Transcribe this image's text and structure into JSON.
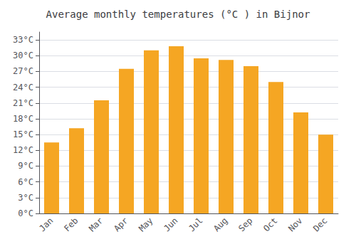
{
  "chart_data": {
    "type": "bar",
    "title": "Average monthly temperatures (°C ) in Bijnor",
    "categories": [
      "Jan",
      "Feb",
      "Mar",
      "Apr",
      "May",
      "Jun",
      "Jul",
      "Aug",
      "Sep",
      "Oct",
      "Nov",
      "Dec"
    ],
    "values": [
      13.5,
      16.2,
      21.5,
      27.5,
      31.0,
      31.8,
      29.5,
      29.2,
      28.0,
      25.0,
      19.2,
      15.0
    ],
    "color": "#F5A623",
    "ylim": [
      0,
      34.5
    ],
    "yticks": [
      {
        "value": 0,
        "label": "0°C"
      },
      {
        "value": 3,
        "label": "3°C"
      },
      {
        "value": 6,
        "label": "6°C"
      },
      {
        "value": 9,
        "label": "9°C"
      },
      {
        "value": 12,
        "label": "12°C"
      },
      {
        "value": 15,
        "label": "15°C"
      },
      {
        "value": 18,
        "label": "18°C"
      },
      {
        "value": 21,
        "label": "21°C"
      },
      {
        "value": 24,
        "label": "24°C"
      },
      {
        "value": 27,
        "label": "27°C"
      },
      {
        "value": 30,
        "label": "30°C"
      },
      {
        "value": 33,
        "label": "33°C"
      }
    ],
    "grid": true
  }
}
